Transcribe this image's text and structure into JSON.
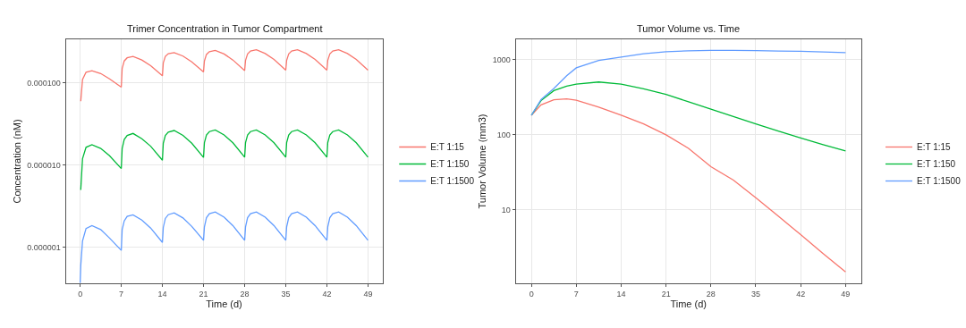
{
  "chart_data": [
    {
      "type": "line",
      "title": "Trimer Concentration in Tumor Compartment",
      "xlabel": "Time (d)",
      "ylabel": "Concentration (nM)",
      "log": "y",
      "grid": true,
      "legend": "right",
      "x": [
        0,
        0.1,
        0.4,
        1,
        2,
        3.5,
        5,
        7,
        7.15,
        7.5,
        8,
        9,
        10.5,
        12,
        14,
        14.15,
        14.5,
        15,
        16,
        17.5,
        19,
        21,
        21.15,
        21.5,
        22,
        23,
        24.5,
        26,
        28,
        28.15,
        28.5,
        29,
        30,
        31.5,
        33,
        35,
        35.15,
        35.5,
        36,
        37,
        38.5,
        40,
        42,
        42.15,
        42.5,
        43,
        44,
        45.5,
        47,
        49
      ],
      "xlim": [
        -2.45,
        51.45
      ],
      "xticks": [
        0,
        7,
        14,
        21,
        28,
        35,
        42,
        49
      ],
      "ylim": [
        3.66e-07,
        0.000339
      ],
      "yticks": [
        {
          "value": 1e-06,
          "label": "0.000001"
        },
        {
          "value": 1e-05,
          "label": "0.000010"
        },
        {
          "value": 0.0001,
          "label": "0.000100"
        }
      ],
      "series": [
        {
          "name": "E:T 1:15",
          "color": "#f8766d",
          "values": [
            null,
            6e-05,
            0.00011,
            0.000135,
            0.000141,
            0.00013,
            0.000112,
            8.9e-05,
            0.00015,
            0.000185,
            0.000202,
            0.00021,
            0.00019,
            0.000162,
            0.000122,
            0.000175,
            0.00021,
            0.000227,
            0.000234,
            0.000212,
            0.00018,
            0.000136,
            0.000185,
            0.000222,
            0.00024,
            0.000249,
            0.000225,
            0.00019,
            0.000141,
            0.000188,
            0.000225,
            0.000244,
            0.000253,
            0.000228,
            0.000193,
            0.000143,
            0.000188,
            0.000225,
            0.000244,
            0.000253,
            0.000228,
            0.000193,
            0.000143,
            0.000188,
            0.000225,
            0.000244,
            0.000253,
            0.000228,
            0.000193,
            0.000143
          ]
        },
        {
          "name": "E:T 1:150",
          "color": "#00ba38",
          "values": [
            null,
            5e-06,
            1.2e-05,
            1.65e-05,
            1.77e-05,
            1.6e-05,
            1.3e-05,
            9.1e-06,
            1.6e-05,
            2.05e-05,
            2.3e-05,
            2.43e-05,
            2.1e-05,
            1.7e-05,
            1.15e-05,
            1.85e-05,
            2.3e-05,
            2.52e-05,
            2.64e-05,
            2.3e-05,
            1.85e-05,
            1.24e-05,
            1.88e-05,
            2.33e-05,
            2.56e-05,
            2.68e-05,
            2.33e-05,
            1.87e-05,
            1.25e-05,
            1.88e-05,
            2.33e-05,
            2.56e-05,
            2.68e-05,
            2.33e-05,
            1.87e-05,
            1.25e-05,
            1.88e-05,
            2.33e-05,
            2.56e-05,
            2.68e-05,
            2.33e-05,
            1.87e-05,
            1.25e-05,
            1.88e-05,
            2.33e-05,
            2.56e-05,
            2.68e-05,
            2.33e-05,
            1.87e-05,
            1.25e-05
          ]
        },
        {
          "name": "E:T 1:1500",
          "color": "#619cff",
          "values": [
            3.7e-07,
            6e-07,
            1.2e-06,
            1.7e-06,
            1.84e-06,
            1.65e-06,
            1.3e-06,
            9.2e-07,
            1.65e-06,
            2.1e-06,
            2.38e-06,
            2.49e-06,
            2.15e-06,
            1.72e-06,
            1.15e-06,
            1.75e-06,
            2.25e-06,
            2.5e-06,
            2.63e-06,
            2.28e-06,
            1.8e-06,
            1.22e-06,
            1.78e-06,
            2.3e-06,
            2.57e-06,
            2.7e-06,
            2.33e-06,
            1.84e-06,
            1.22e-06,
            1.78e-06,
            2.3e-06,
            2.57e-06,
            2.7e-06,
            2.33e-06,
            1.84e-06,
            1.22e-06,
            1.78e-06,
            2.3e-06,
            2.57e-06,
            2.7e-06,
            2.33e-06,
            1.84e-06,
            1.22e-06,
            1.78e-06,
            2.3e-06,
            2.57e-06,
            2.7e-06,
            2.33e-06,
            1.84e-06,
            1.22e-06
          ]
        }
      ]
    },
    {
      "type": "line",
      "title": "Tumor Volume vs. Time",
      "xlabel": "Time (d)",
      "ylabel": "Tumor Volume (mm3)",
      "log": "y",
      "grid": true,
      "legend": "right",
      "x": [
        0,
        1.5,
        3.5,
        5.5,
        7,
        10.5,
        14,
        17.5,
        21,
        24.5,
        28,
        31.5,
        35,
        38.5,
        42,
        45.5,
        49
      ],
      "xlim": [
        -2.45,
        51.45
      ],
      "xticks": [
        0,
        7,
        14,
        21,
        28,
        35,
        42,
        49
      ],
      "ylim": [
        1.06,
        1862
      ],
      "yticks": [
        10,
        100,
        1000
      ],
      "series": [
        {
          "name": "E:T 1:15",
          "color": "#f8766d",
          "values": [
            182,
            250,
            293,
            300,
            288,
            234,
            183,
            140,
            100,
            66,
            37.7,
            25,
            14.6,
            8.3,
            4.7,
            2.63,
            1.5
          ]
        },
        {
          "name": "E:T 1:150",
          "color": "#00ba38",
          "values": [
            182,
            285,
            387,
            445,
            473,
            504,
            473,
            410,
            344,
            275,
            219,
            175,
            140,
            112,
            91,
            74,
            61
          ]
        },
        {
          "name": "E:T 1:1500",
          "color": "#619cff",
          "values": [
            182,
            295,
            413,
            610,
            777,
            973,
            1084,
            1200,
            1276,
            1310,
            1324,
            1324,
            1318,
            1303,
            1288,
            1265,
            1242
          ]
        }
      ]
    }
  ]
}
